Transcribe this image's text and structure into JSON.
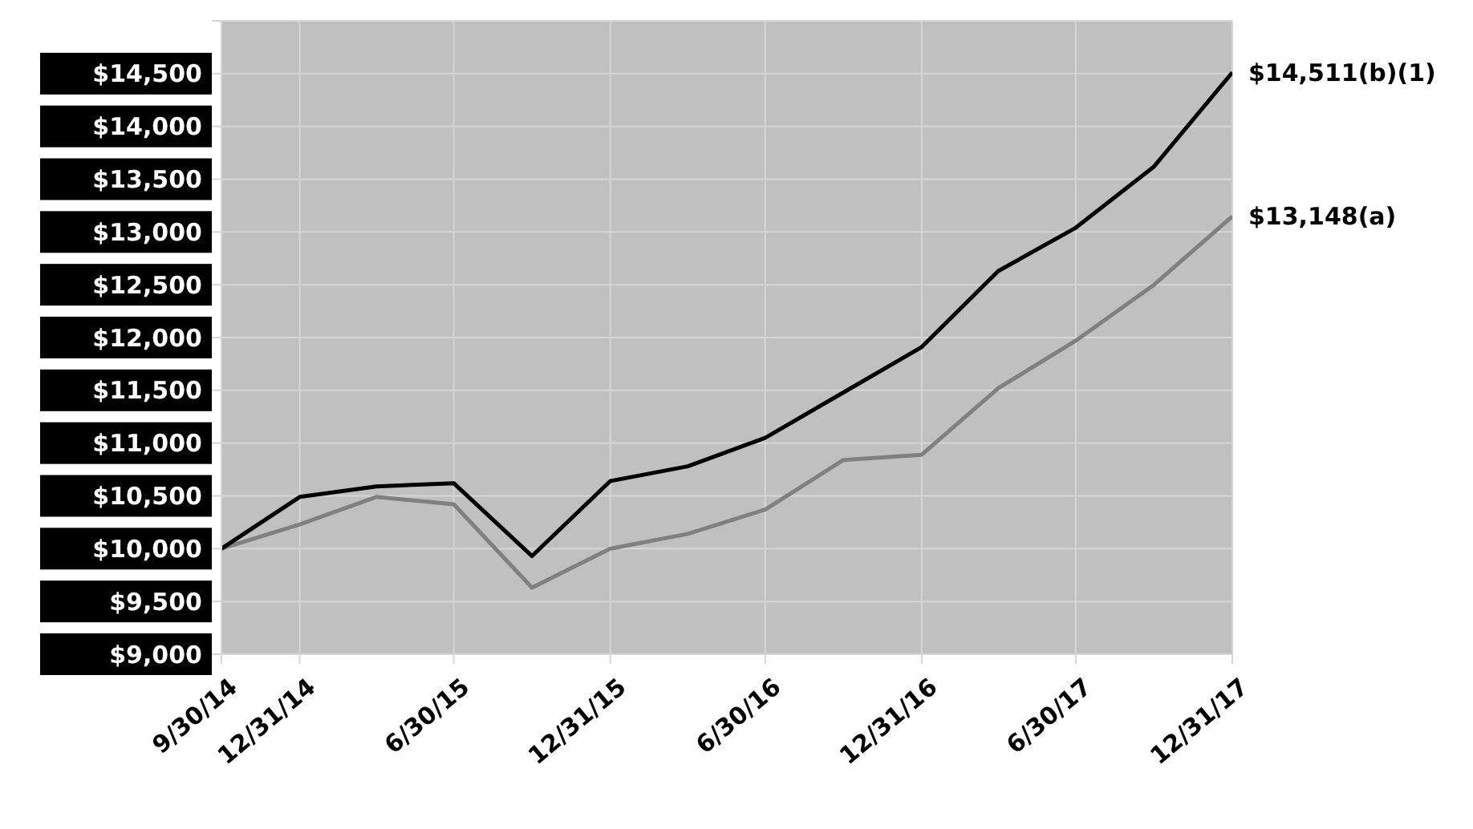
{
  "chart_data": {
    "type": "line",
    "x": [
      "2014-09-30",
      "2014-12-31",
      "2015-03-31",
      "2015-06-30",
      "2015-09-30",
      "2015-12-31",
      "2016-03-31",
      "2016-06-30",
      "2016-09-30",
      "2016-12-31",
      "2017-03-31",
      "2017-06-30",
      "2017-09-30",
      "2017-12-31"
    ],
    "series": [
      {
        "color": "#808080",
        "values": [
          10000,
          10230,
          10490,
          10420,
          9630,
          10000,
          10140,
          10370,
          10840,
          10890,
          11520,
          11970,
          12500,
          13148
        ]
      },
      {
        "color": "#000000",
        "values": [
          10000,
          10490,
          10590,
          10620,
          9930,
          10640,
          10780,
          11050,
          11480,
          11910,
          12630,
          13040,
          13620,
          14511
        ]
      }
    ],
    "xlim": [
      "2014-09-30",
      "2017-12-31"
    ],
    "xticks": [
      {
        "value": "2014-09-30",
        "label": "9/30/14"
      },
      {
        "value": "2014-12-31",
        "label": "12/31/14"
      },
      {
        "value": "2015-06-30",
        "label": "6/30/15"
      },
      {
        "value": "2015-12-31",
        "label": "12/31/15"
      },
      {
        "value": "2016-06-30",
        "label": "6/30/16"
      },
      {
        "value": "2016-12-31",
        "label": "12/31/16"
      },
      {
        "value": "2017-06-30",
        "label": "6/30/17"
      },
      {
        "value": "2017-12-31",
        "label": "12/31/17"
      }
    ],
    "ylim": [
      9000,
      15000
    ],
    "yticks": [
      {
        "value": 9000,
        "label": "$9,000"
      },
      {
        "value": 9500,
        "label": "$9,500"
      },
      {
        "value": 10000,
        "label": "$10,000"
      },
      {
        "value": 10500,
        "label": "$10,500"
      },
      {
        "value": 11000,
        "label": "$11,000"
      },
      {
        "value": 11500,
        "label": "$11,500"
      },
      {
        "value": 12000,
        "label": "$12,000"
      },
      {
        "value": 12500,
        "label": "$12,500"
      },
      {
        "value": 13000,
        "label": "$13,000"
      },
      {
        "value": 13500,
        "label": "$13,500"
      },
      {
        "value": 14000,
        "label": "$14,000"
      },
      {
        "value": 14500,
        "label": "$14,500"
      },
      {
        "value": 15000,
        "label": null
      }
    ],
    "annotations": [
      {
        "text": "$14,511(b)(1)",
        "x": "2017-12-31",
        "y": 14511
      },
      {
        "text": "$13,148(a)",
        "x": "2017-12-31",
        "y": 13148
      }
    ],
    "grid": true,
    "legend": false,
    "marker": "none",
    "line_style": "solid"
  }
}
